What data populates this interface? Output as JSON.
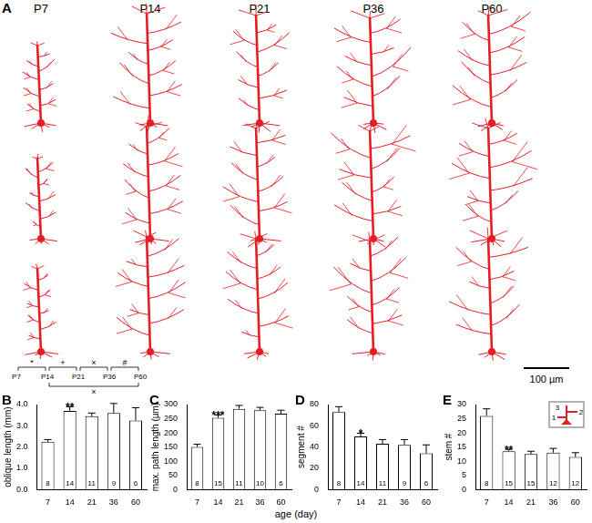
{
  "panel_a": {
    "label": "A",
    "columns": [
      "P7",
      "P14",
      "P21",
      "P36",
      "P60"
    ],
    "scale_bar": "100 µm"
  },
  "shared_x_label": "age (day)",
  "comparison_brackets": {
    "ages": [
      "P7",
      "P14",
      "P21",
      "P36",
      "P60"
    ],
    "brackets": [
      {
        "from": "P7",
        "to": "P14",
        "symbol": "*",
        "side": "top"
      },
      {
        "from": "P14",
        "to": "P21",
        "symbol": "+",
        "side": "top"
      },
      {
        "from": "P21",
        "to": "P36",
        "symbol": "×",
        "side": "top"
      },
      {
        "from": "P36",
        "to": "P60",
        "symbol": "#",
        "side": "top"
      },
      {
        "from": "P14",
        "to": "P60",
        "symbol": "×",
        "side": "bottom"
      }
    ]
  },
  "chart_data": [
    {
      "panel": "B",
      "type": "bar",
      "y_label": "oblique length (mm)",
      "categories": [
        "7",
        "14",
        "21",
        "36",
        "60"
      ],
      "values": [
        2.25,
        3.7,
        3.45,
        3.6,
        3.25
      ],
      "errors": [
        0.1,
        0.2,
        0.15,
        0.45,
        0.6
      ],
      "n": [
        8,
        14,
        11,
        9,
        6
      ],
      "significance": [
        null,
        "**",
        null,
        null,
        null
      ],
      "color": "#ffffff",
      "grid": false,
      "ylim": [
        0,
        4
      ],
      "yticks": [
        {
          "value": 0,
          "label": "0.0"
        },
        {
          "value": 1,
          "label": "1.0"
        },
        {
          "value": 2,
          "label": "2.0"
        },
        {
          "value": 3,
          "label": "3.0"
        },
        {
          "value": 4,
          "label": "4.0"
        }
      ]
    },
    {
      "panel": "C",
      "type": "bar",
      "y_label": "max. path length (µm)",
      "categories": [
        "7",
        "14",
        "21",
        "36",
        "60"
      ],
      "values": [
        150,
        253,
        285,
        280,
        268
      ],
      "errors": [
        10,
        10,
        12,
        10,
        12
      ],
      "n": [
        8,
        15,
        11,
        10,
        6
      ],
      "significance": [
        null,
        "***",
        null,
        null,
        null
      ],
      "color": "#ffffff",
      "grid": false,
      "ylim": [
        0,
        300
      ],
      "yticks": [
        0,
        50,
        100,
        150,
        200,
        250,
        300
      ]
    },
    {
      "panel": "D",
      "type": "bar",
      "y_label": "segment #",
      "categories": [
        "7",
        "14",
        "21",
        "36",
        "60"
      ],
      "values": [
        73,
        50,
        43,
        42,
        34
      ],
      "errors": [
        5,
        3,
        4,
        5,
        8
      ],
      "n": [
        8,
        14,
        11,
        9,
        6
      ],
      "significance": [
        null,
        "*",
        null,
        null,
        null
      ],
      "color": "#ffffff",
      "grid": false,
      "ylim": [
        0,
        80
      ],
      "yticks": [
        0,
        20,
        40,
        60,
        80
      ]
    },
    {
      "panel": "E",
      "type": "bar",
      "y_label": "stem #",
      "categories": [
        "7",
        "14",
        "21",
        "36",
        "60"
      ],
      "values": [
        26,
        13.5,
        12.5,
        13,
        11.5
      ],
      "errors": [
        2.5,
        0.7,
        1,
        1.5,
        1.5
      ],
      "n": [
        8,
        15,
        15,
        12,
        12
      ],
      "significance": [
        null,
        "**",
        null,
        null,
        null
      ],
      "inset_labels": [
        "1",
        "2",
        "3"
      ],
      "color": "#ffffff",
      "grid": false,
      "ylim": [
        0,
        30
      ],
      "yticks": [
        0,
        5,
        10,
        15,
        20,
        25,
        30
      ]
    }
  ]
}
